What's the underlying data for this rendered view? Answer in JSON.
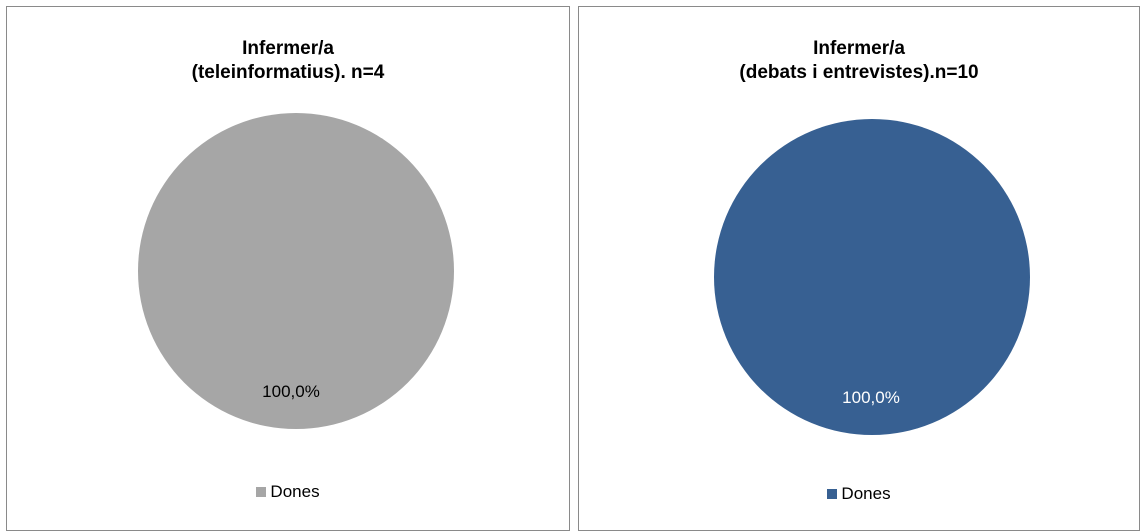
{
  "chart_data": [
    {
      "type": "pie",
      "title_lines": [
        "Infermer/a",
        "(teleinformatius). n=4"
      ],
      "categories": [
        "Dones"
      ],
      "values": [
        100.0
      ],
      "data_labels": [
        "100,0%"
      ],
      "colors": [
        "#a6a6a6"
      ],
      "label_color": "#000000",
      "legend": {
        "position": "bottom",
        "entries": [
          "Dones"
        ]
      }
    },
    {
      "type": "pie",
      "title_lines": [
        "Infermer/a",
        "(debats i entrevistes).n=10"
      ],
      "categories": [
        "Dones"
      ],
      "values": [
        100.0
      ],
      "data_labels": [
        "100,0%"
      ],
      "colors": [
        "#376092"
      ],
      "label_color": "#ffffff",
      "legend": {
        "position": "bottom",
        "entries": [
          "Dones"
        ]
      }
    }
  ]
}
